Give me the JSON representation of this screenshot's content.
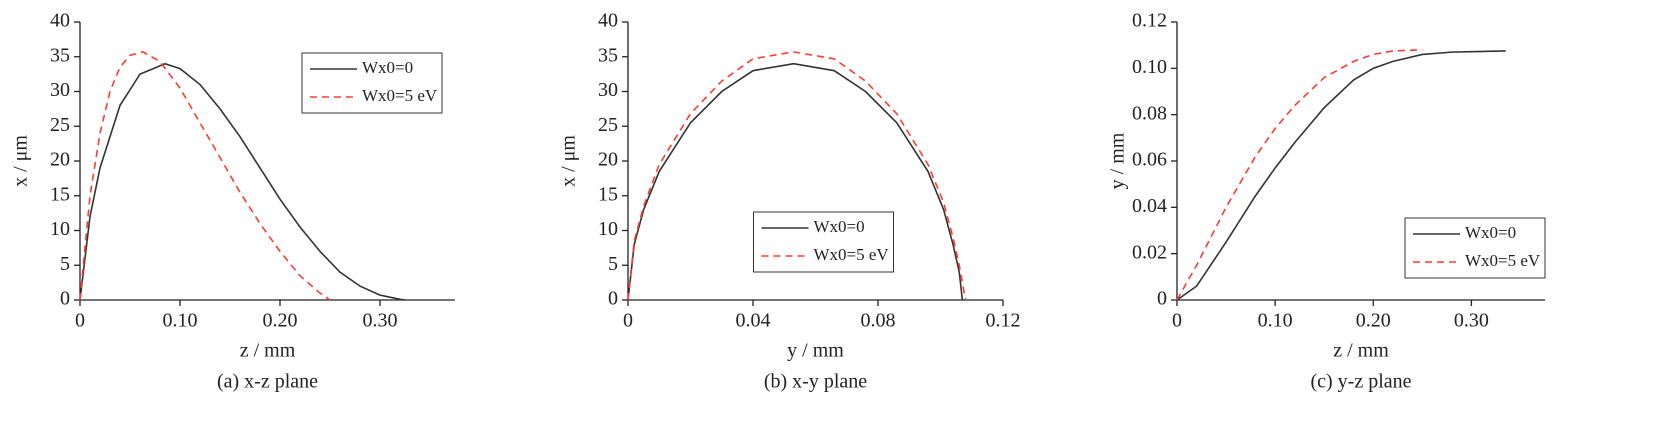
{
  "chart_data": [
    {
      "type": "line",
      "caption": "(a) x-z plane",
      "x_label": "z / mm",
      "y_label": "x / μm",
      "xlim": [
        0,
        0.375
      ],
      "ylim": [
        0,
        40
      ],
      "xticks": [
        0,
        {
          "value": 0.1,
          "label": "0.10"
        },
        {
          "value": 0.2,
          "label": "0.20"
        },
        {
          "value": 0.3,
          "label": "0.30"
        }
      ],
      "yticks": [
        0,
        5,
        10,
        15,
        20,
        25,
        30,
        35,
        40
      ],
      "legend": "upper right",
      "series": [
        {
          "name": "Wx0=0",
          "color": "#333333",
          "style": "solid",
          "x": [
            0,
            0.01,
            0.02,
            0.04,
            0.06,
            0.085,
            0.1,
            0.12,
            0.14,
            0.16,
            0.18,
            0.2,
            0.22,
            0.24,
            0.26,
            0.28,
            0.3,
            0.32,
            0.325
          ],
          "values": [
            0,
            12,
            19,
            28,
            32.5,
            34,
            33.3,
            31,
            27.5,
            23.5,
            19,
            14.5,
            10.5,
            7,
            4,
            2,
            0.7,
            0.1,
            0
          ]
        },
        {
          "name": "Wx0=5 eV",
          "color": "#ff3b2f",
          "style": "dashed",
          "x": [
            0,
            0.01,
            0.02,
            0.03,
            0.04,
            0.05,
            0.063,
            0.08,
            0.1,
            0.12,
            0.14,
            0.16,
            0.18,
            0.2,
            0.22,
            0.24,
            0.25
          ],
          "values": [
            0,
            15,
            24,
            30,
            33.5,
            35.2,
            35.7,
            34.3,
            30.5,
            25.5,
            20.5,
            15.5,
            11,
            7,
            3.5,
            1,
            0
          ]
        }
      ]
    },
    {
      "type": "line",
      "caption": "(b) x-y plane",
      "x_label": "y / mm",
      "y_label": "x / μm",
      "xlim": [
        0,
        0.12
      ],
      "ylim": [
        0,
        40
      ],
      "xticks": [
        0,
        0.04,
        0.08,
        0.12
      ],
      "yticks": [
        0,
        5,
        10,
        15,
        20,
        25,
        30,
        35,
        40
      ],
      "legend": "lower center",
      "series": [
        {
          "name": "Wx0=0",
          "color": "#333333",
          "style": "solid",
          "x": [
            0,
            0.002,
            0.005,
            0.01,
            0.02,
            0.03,
            0.04,
            0.053,
            0.066,
            0.076,
            0.086,
            0.096,
            0.101,
            0.104,
            0.106,
            0.107
          ],
          "values": [
            0,
            8,
            13,
            18.5,
            25.5,
            30,
            33,
            34,
            33,
            30,
            25.5,
            18.5,
            13,
            8,
            4,
            0
          ]
        },
        {
          "name": "Wx0=5 eV",
          "color": "#ff3b2f",
          "style": "dashed",
          "x": [
            0,
            0.002,
            0.005,
            0.01,
            0.02,
            0.03,
            0.04,
            0.053,
            0.066,
            0.076,
            0.086,
            0.096,
            0.101,
            0.104,
            0.106,
            0.108
          ],
          "values": [
            0,
            8.5,
            13.5,
            19.5,
            26.8,
            31.5,
            34.7,
            35.7,
            34.7,
            31.5,
            26.8,
            19.5,
            14,
            9,
            5,
            0
          ]
        }
      ]
    },
    {
      "type": "line",
      "caption": "(c) y-z plane",
      "x_label": "z / mm",
      "y_label": "y / mm",
      "xlim": [
        0,
        0.375
      ],
      "ylim": [
        0,
        0.12
      ],
      "xticks": [
        0,
        {
          "value": 0.1,
          "label": "0.10"
        },
        {
          "value": 0.2,
          "label": "0.20"
        },
        {
          "value": 0.3,
          "label": "0.30"
        }
      ],
      "yticks": [
        0,
        0.02,
        0.04,
        0.06,
        0.08,
        {
          "value": 0.1,
          "label": "0.10"
        },
        0.12
      ],
      "legend": "lower right",
      "series": [
        {
          "name": "Wx0=0",
          "color": "#333333",
          "style": "solid",
          "x": [
            0,
            0.02,
            0.05,
            0.08,
            0.1,
            0.12,
            0.15,
            0.18,
            0.2,
            0.22,
            0.25,
            0.28,
            0.3,
            0.335
          ],
          "values": [
            0,
            0.006,
            0.025,
            0.045,
            0.057,
            0.068,
            0.083,
            0.095,
            0.1,
            0.103,
            0.106,
            0.107,
            0.1072,
            0.1075
          ]
        },
        {
          "name": "Wx0=5 eV",
          "color": "#ff3b2f",
          "style": "dashed",
          "x": [
            0,
            0.02,
            0.05,
            0.08,
            0.1,
            0.12,
            0.15,
            0.18,
            0.2,
            0.22,
            0.25
          ],
          "values": [
            0,
            0.015,
            0.04,
            0.062,
            0.074,
            0.084,
            0.096,
            0.103,
            0.106,
            0.1075,
            0.108
          ]
        }
      ]
    }
  ]
}
